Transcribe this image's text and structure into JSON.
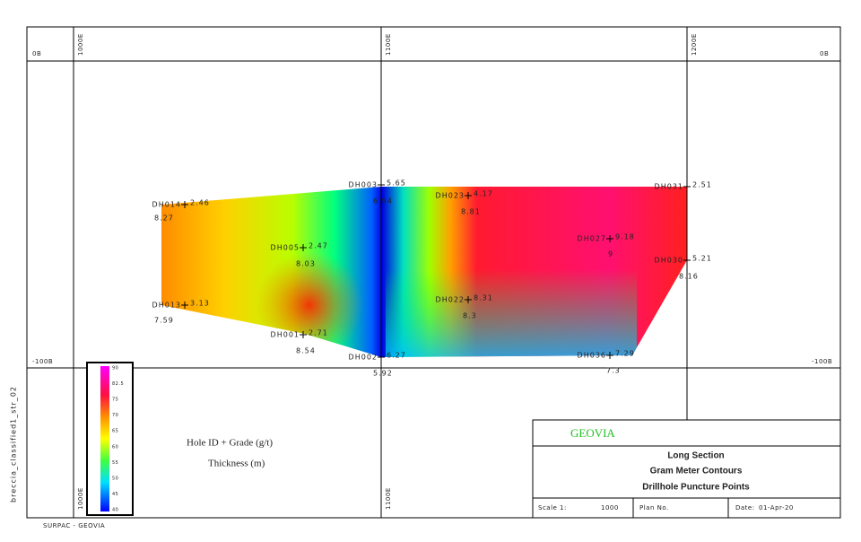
{
  "frame": {
    "top_left_label": "0B",
    "top_right_label": "0B",
    "mid_left_label": "-100B",
    "mid_right_label": "-100B",
    "easting_labels": [
      "1000E",
      "1100E",
      "1200E"
    ],
    "side_label": "breccia_classified1_str_02",
    "footer": "SURPAC - GEOVIA"
  },
  "legend": {
    "labels": [
      "90",
      "82.5",
      "75",
      "70",
      "65",
      "60",
      "55",
      "50",
      "45",
      "40"
    ]
  },
  "key": {
    "hole_grade": "Hole ID + Grade (g/t)",
    "thickness": "Thickness (m)"
  },
  "drillholes": [
    {
      "id": "DH014",
      "grade": 2.46,
      "thickness": 8.27
    },
    {
      "id": "DH005",
      "grade": 2.47,
      "thickness": 8.03
    },
    {
      "id": "DH013",
      "grade": 3.13,
      "thickness": 7.59
    },
    {
      "id": "DH001",
      "grade": 2.71,
      "thickness": 8.54
    },
    {
      "id": "DH003",
      "grade": 5.65,
      "thickness": 6.94
    },
    {
      "id": "DH002",
      "grade": 6.27,
      "thickness": 5.92
    },
    {
      "id": "DH023",
      "grade": 4.17,
      "thickness": 8.81
    },
    {
      "id": "DH022",
      "grade": 8.31,
      "thickness": 8.3
    },
    {
      "id": "DH027",
      "grade": 9.18,
      "thickness": 9
    },
    {
      "id": "DH031",
      "grade": 2.51,
      "thickness": null
    },
    {
      "id": "DH030",
      "grade": 5.21,
      "thickness": 8.16
    },
    {
      "id": "DH036",
      "grade": 7.29,
      "thickness": 7.3
    }
  ],
  "title_block": {
    "brand": "GEOVIA",
    "lines": [
      "Long Section",
      "Gram Meter Contours",
      "Drillhole Puncture Points"
    ],
    "scale_label": "Scale 1:",
    "scale_value": "1000",
    "plan_label": "Plan No.",
    "date_label": "Date:",
    "date_value": "01-Apr-20"
  }
}
